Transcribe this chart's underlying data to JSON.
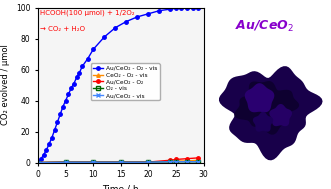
{
  "title_right": "Au/CeO₂",
  "annotation_line1": "HCOOH(100 μmol) + 1/2O₂",
  "annotation_line2": "→ CO₂ + H₂O",
  "xlabel": "Time / h",
  "ylabel": "CO₂ evolved / μmol",
  "xlim": [
    0,
    30
  ],
  "ylim": [
    0,
    100
  ],
  "xticks": [
    0,
    5,
    10,
    15,
    20,
    25,
    30
  ],
  "yticks": [
    0,
    20,
    40,
    60,
    80,
    100
  ],
  "series": [
    {
      "label": "Au/CeO₂ - O₂ - vis",
      "color": "#0000ff",
      "marker": "o",
      "markerfacecolor": "#0000ff",
      "x": [
        0,
        0.5,
        1,
        1.5,
        2,
        2.5,
        3,
        3.5,
        4,
        4.5,
        5,
        5.5,
        6,
        6.5,
        7,
        7.5,
        8,
        9,
        10,
        12,
        14,
        16,
        18,
        20,
        22,
        24,
        25,
        26,
        27,
        28,
        29
      ],
      "y": [
        0,
        2,
        5,
        8,
        12,
        16,
        21,
        26,
        31,
        36,
        40,
        44,
        48,
        51,
        55,
        58,
        62,
        67,
        73,
        81,
        87,
        91,
        94,
        96,
        98,
        99,
        99.5,
        100,
        100,
        100,
        100
      ]
    },
    {
      "label": "CeO₂ - O₂ - vis",
      "color": "#ff8c00",
      "marker": "^",
      "markerfacecolor": "#ff8c00",
      "x": [
        0,
        5,
        10,
        15,
        20,
        24,
        25,
        27,
        29
      ],
      "y": [
        0,
        0.5,
        0.5,
        0.5,
        0.5,
        0.5,
        1,
        1,
        1.5
      ]
    },
    {
      "label": "Au/CeO₂ - O₂",
      "color": "#ff0000",
      "marker": "o",
      "markerfacecolor": "#ff0000",
      "x": [
        0,
        5,
        10,
        15,
        20,
        24,
        25,
        27,
        29
      ],
      "y": [
        0,
        0.3,
        0.3,
        0.3,
        0.3,
        1.5,
        2,
        2.5,
        3
      ]
    },
    {
      "label": "O₂ - vis",
      "color": "#006400",
      "marker": "s",
      "markerfacecolor": "none",
      "markeredgecolor": "#006400",
      "x": [
        0,
        5,
        10,
        15,
        20,
        24,
        25,
        27,
        29
      ],
      "y": [
        0,
        0.2,
        0.2,
        0.2,
        0.2,
        0.5,
        0.5,
        0.5,
        0.5
      ]
    },
    {
      "label": "Au/CeO₂ - vis",
      "color": "#4488ff",
      "marker": "x",
      "markerfacecolor": "#4488ff",
      "x": [
        0,
        5,
        10,
        15,
        20,
        24,
        25,
        27,
        29
      ],
      "y": [
        0,
        0.2,
        0.2,
        0.2,
        0.2,
        0.5,
        0.5,
        0.5,
        0.5
      ]
    }
  ],
  "annotation_color": "#ff0000",
  "title_color": "#8800cc",
  "photo_bg": "#a8b8a0",
  "powder_color1": "#18004a",
  "powder_color2": "#0e0030",
  "powder_color3": "#220060"
}
